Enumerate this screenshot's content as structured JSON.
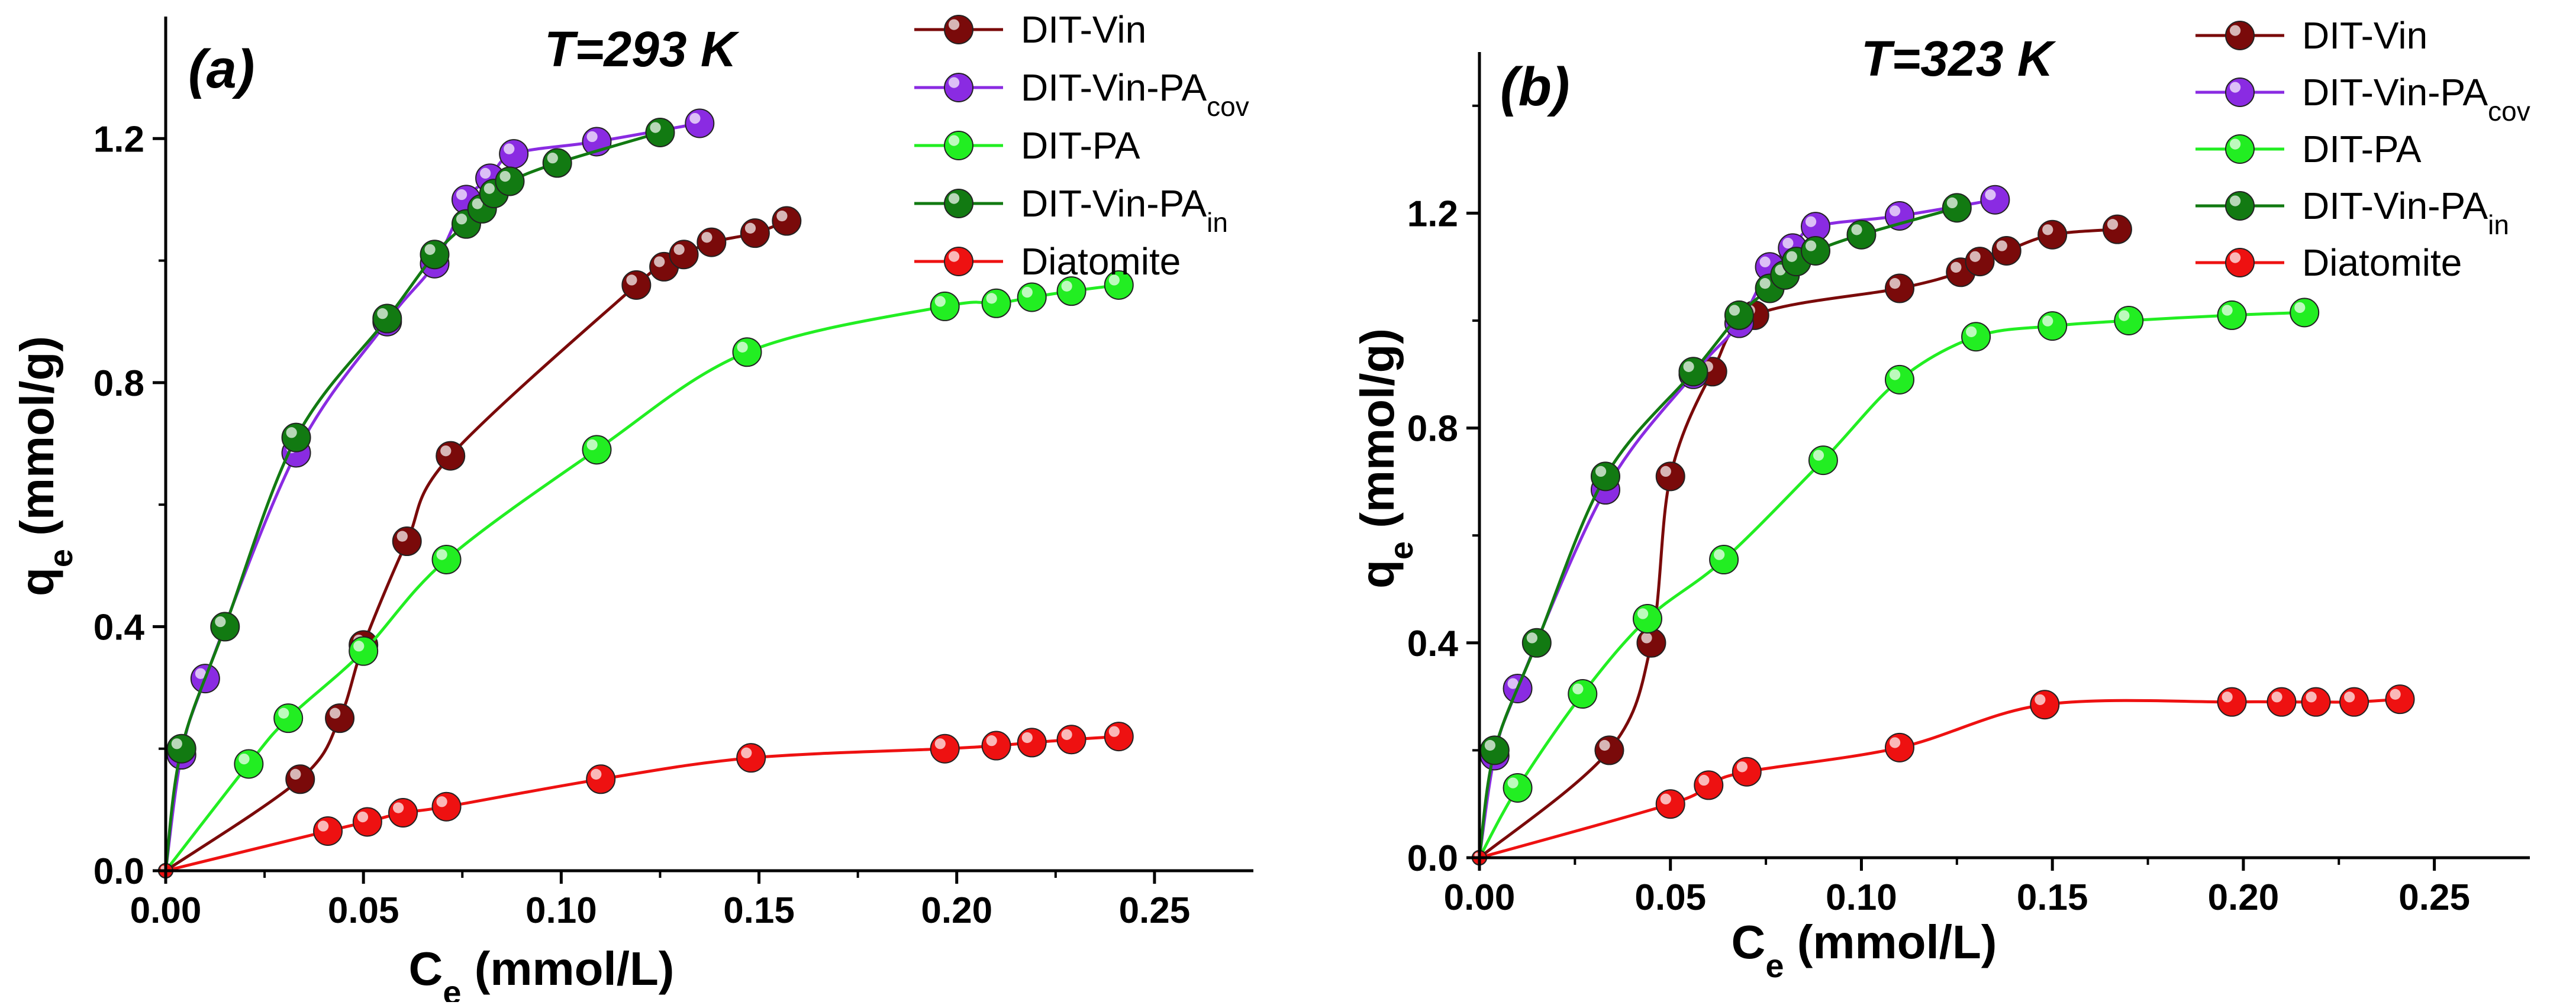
{
  "chart_data": [
    {
      "type": "line",
      "panel_label": "(a)",
      "temperature_label": "T=293 K",
      "xlabel": "C",
      "xlabel_sub": "e",
      "xlabel_unit": " (mmol/L)",
      "ylabel": "q",
      "ylabel_sub": "e",
      "ylabel_unit": " (mmol/g)",
      "xlim": [
        0,
        0.275
      ],
      "ylim": [
        0,
        1.4
      ],
      "xticks": [
        0.0,
        0.05,
        0.1,
        0.15,
        0.2,
        0.25
      ],
      "xtick_labels": [
        "0.00",
        "0.05",
        "0.10",
        "0.15",
        "0.20",
        "0.25"
      ],
      "yticks": [
        0.0,
        0.4,
        0.8,
        1.2
      ],
      "ytick_labels": [
        "0.0",
        "0.4",
        "0.8",
        "1.2"
      ],
      "series": [
        {
          "name": "DIT-Vin",
          "sub": "",
          "color": "#7a0a0a",
          "x": [
            0,
            0.034,
            0.044,
            0.05,
            0.061,
            0.072,
            0.119,
            0.126,
            0.131,
            0.138,
            0.149,
            0.157
          ],
          "y": [
            0,
            0.15,
            0.25,
            0.37,
            0.54,
            0.68,
            0.96,
            0.99,
            1.01,
            1.03,
            1.045,
            1.065
          ]
        },
        {
          "name": "DIT-Vin-PA",
          "sub": "cov",
          "color": "#8a2be2",
          "x": [
            0,
            0.004,
            0.01,
            0.033,
            0.056,
            0.068,
            0.076,
            0.082,
            0.088,
            0.109,
            0.135
          ],
          "y": [
            0,
            0.19,
            0.315,
            0.685,
            0.9,
            0.995,
            1.1,
            1.135,
            1.175,
            1.195,
            1.225
          ]
        },
        {
          "name": "DIT-PA",
          "sub": "",
          "color": "#22ee22",
          "x": [
            0,
            0.021,
            0.031,
            0.05,
            0.071,
            0.109,
            0.147,
            0.197,
            0.21,
            0.219,
            0.229,
            0.241
          ],
          "y": [
            0,
            0.175,
            0.25,
            0.36,
            0.51,
            0.69,
            0.85,
            0.925,
            0.93,
            0.94,
            0.95,
            0.96
          ]
        },
        {
          "name": "DIT-Vin-PA",
          "sub": "in",
          "color": "#127a12",
          "x": [
            0,
            0.004,
            0.015,
            0.033,
            0.056,
            0.068,
            0.076,
            0.08,
            0.083,
            0.087,
            0.099,
            0.125
          ],
          "y": [
            0,
            0.2,
            0.4,
            0.71,
            0.905,
            1.01,
            1.06,
            1.085,
            1.11,
            1.13,
            1.16,
            1.21
          ]
        },
        {
          "name": "Diatomite",
          "sub": "",
          "color": "#ee1111",
          "x": [
            0,
            0.041,
            0.051,
            0.06,
            0.071,
            0.11,
            0.148,
            0.197,
            0.21,
            0.219,
            0.229,
            0.241
          ],
          "y": [
            0,
            0.065,
            0.08,
            0.095,
            0.105,
            0.15,
            0.185,
            0.2,
            0.205,
            0.21,
            0.215,
            0.22
          ]
        }
      ]
    },
    {
      "type": "line",
      "panel_label": "(b)",
      "temperature_label": "T=323 K",
      "xlabel": "C",
      "xlabel_sub": "e",
      "xlabel_unit": " (mmol/L)",
      "ylabel": "q",
      "ylabel_sub": "e",
      "ylabel_unit": " (mmol/g)",
      "xlim": [
        0,
        0.275
      ],
      "ylim": [
        0,
        1.5
      ],
      "xticks": [
        0.0,
        0.05,
        0.1,
        0.15,
        0.2,
        0.25
      ],
      "xtick_labels": [
        "0.00",
        "0.05",
        "0.10",
        "0.15",
        "0.20",
        "0.25"
      ],
      "yticks": [
        0.0,
        0.4,
        0.8,
        1.2
      ],
      "ytick_labels": [
        "0.0",
        "0.4",
        "0.8",
        "1.2"
      ],
      "series": [
        {
          "name": "DIT-Vin",
          "sub": "",
          "color": "#7a0a0a",
          "x": [
            0,
            0.034,
            0.045,
            0.05,
            0.061,
            0.072,
            0.11,
            0.126,
            0.131,
            0.138,
            0.15,
            0.167
          ],
          "y": [
            0,
            0.2,
            0.4,
            0.71,
            0.905,
            1.01,
            1.06,
            1.09,
            1.11,
            1.13,
            1.16,
            1.17
          ]
        },
        {
          "name": "DIT-Vin-PA",
          "sub": "cov",
          "color": "#8a2be2",
          "x": [
            0,
            0.004,
            0.01,
            0.033,
            0.056,
            0.068,
            0.076,
            0.082,
            0.088,
            0.11,
            0.135
          ],
          "y": [
            0,
            0.19,
            0.315,
            0.685,
            0.9,
            0.995,
            1.1,
            1.135,
            1.175,
            1.195,
            1.225
          ]
        },
        {
          "name": "DIT-PA",
          "sub": "",
          "color": "#22ee22",
          "x": [
            0,
            0.01,
            0.027,
            0.044,
            0.064,
            0.09,
            0.11,
            0.13,
            0.15,
            0.17,
            0.197,
            0.216
          ],
          "y": [
            0,
            0.13,
            0.305,
            0.445,
            0.555,
            0.74,
            0.89,
            0.97,
            0.99,
            1.0,
            1.01,
            1.015
          ]
        },
        {
          "name": "DIT-Vin-PA",
          "sub": "in",
          "color": "#127a12",
          "x": [
            0,
            0.004,
            0.015,
            0.033,
            0.056,
            0.068,
            0.076,
            0.08,
            0.083,
            0.088,
            0.1,
            0.125
          ],
          "y": [
            0,
            0.2,
            0.4,
            0.71,
            0.905,
            1.01,
            1.06,
            1.085,
            1.11,
            1.13,
            1.16,
            1.21
          ]
        },
        {
          "name": "Diatomite",
          "sub": "",
          "color": "#ee1111",
          "x": [
            0,
            0.05,
            0.06,
            0.07,
            0.11,
            0.148,
            0.197,
            0.21,
            0.219,
            0.229,
            0.241
          ],
          "y": [
            0,
            0.1,
            0.135,
            0.16,
            0.205,
            0.285,
            0.29,
            0.29,
            0.29,
            0.29,
            0.295
          ]
        }
      ]
    }
  ]
}
